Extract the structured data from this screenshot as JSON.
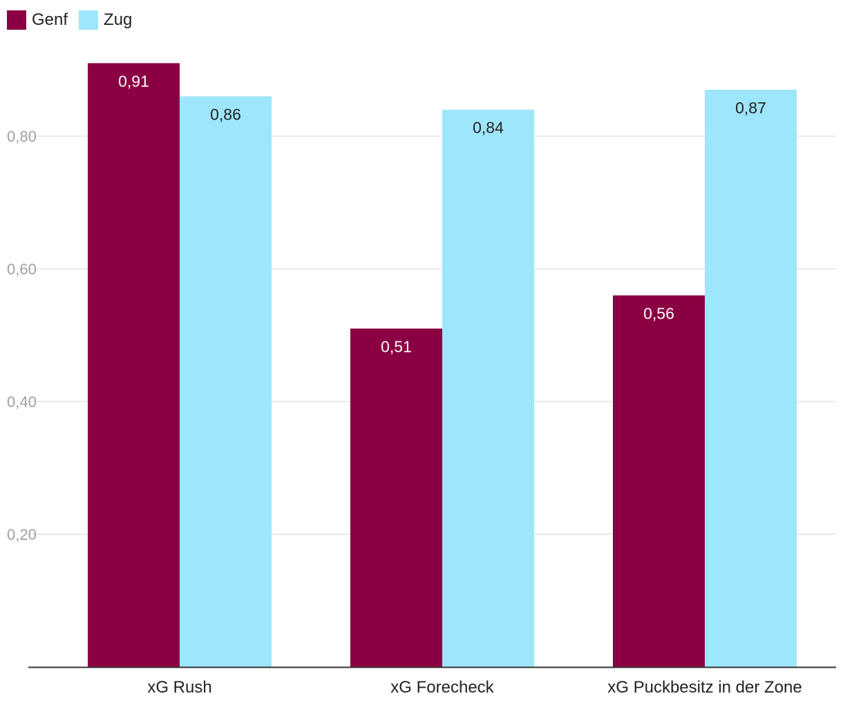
{
  "chart_data": {
    "type": "bar",
    "categories": [
      "xG Rush",
      "xG Forecheck",
      "xG Puckbesitz in der Zone"
    ],
    "series": [
      {
        "name": "Genf",
        "values": [
          0.91,
          0.51,
          0.56
        ],
        "labels": [
          "0,91",
          "0,51",
          "0,56"
        ],
        "color": "#8a0042"
      },
      {
        "name": "Zug",
        "values": [
          0.86,
          0.84,
          0.87
        ],
        "labels": [
          "0,86",
          "0,84",
          "0,87"
        ],
        "color": "#9ee6fc"
      }
    ],
    "y_ticks": [
      0.2,
      0.4,
      0.6,
      0.8
    ],
    "y_tick_labels": [
      "0,20",
      "0,40",
      "0,60",
      "0,80"
    ],
    "ylim": [
      0,
      0.92
    ],
    "grid": true,
    "legend_position": "top-left",
    "title": "",
    "xlabel": "",
    "ylabel": ""
  }
}
